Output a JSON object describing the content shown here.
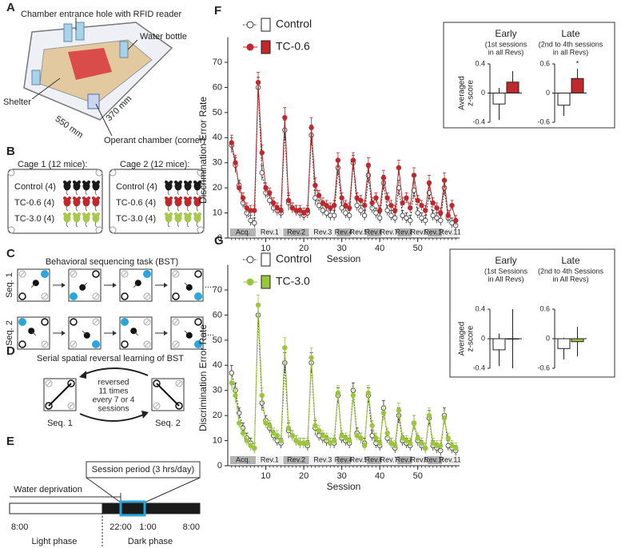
{
  "panels": {
    "letters": [
      "A",
      "B",
      "C",
      "D",
      "E",
      "F",
      "G"
    ],
    "A": {
      "rfid": "Chamber entrance hole with RFID reader",
      "water": "Water bottle",
      "shelter": "Shelter",
      "dim1": "550 mm",
      "dim2": "370 mm",
      "operant": "Operant chamber (corner)"
    },
    "B": {
      "cage1": "Cage 1 (12 mice):",
      "cage2": "Cage 2 (12 mice):",
      "groups": [
        "Control (4)",
        "TC-0.6 (4)",
        "TC-3.0 (4)"
      ],
      "colors": [
        "#1a1a1a",
        "#c0282d",
        "#a9c84e"
      ]
    },
    "C": {
      "title": "Behavioral sequencing task (BST)",
      "seq1": "Seq. 1",
      "seq2": "Seq. 2",
      "more": "...."
    },
    "D": {
      "title": "Serial spatial reversal learning of BST",
      "note": [
        "reversed",
        "11 times",
        "every 7 or 4",
        "sessions"
      ],
      "seq1": "Seq. 1",
      "seq2": "Seq. 2"
    },
    "E": {
      "session": "Session period (3 hrs/day)",
      "water": "Water deprivation",
      "times": [
        "8:00",
        "22:00",
        "1:00",
        "8:00"
      ],
      "light": "Light phase",
      "dark": "Dark phase"
    }
  },
  "chart_data": [
    {
      "type": "line",
      "xlabel": "Session",
      "ylabel": "Discrimination Error Rate",
      "x": [
        1,
        2,
        3,
        4,
        5,
        6,
        7,
        8,
        9,
        10,
        11,
        12,
        13,
        14,
        15,
        16,
        17,
        18,
        19,
        20,
        21,
        22,
        23,
        24,
        25,
        26,
        27,
        28,
        29,
        30,
        31,
        32,
        33,
        34,
        35,
        36,
        37,
        38,
        39,
        40,
        41,
        42,
        43,
        44,
        45,
        46,
        47,
        48,
        49,
        50,
        51,
        52,
        53,
        54,
        55,
        56,
        57,
        58,
        59,
        60
      ],
      "xlim": [
        0,
        61
      ],
      "xticks": [
        10,
        20,
        30,
        40,
        50
      ],
      "ylim": [
        0,
        80
      ],
      "yticks": [
        0,
        10,
        20,
        30,
        40,
        50,
        60,
        70
      ],
      "blocks": [
        {
          "label": "Acq.",
          "start": 0.5,
          "end": 7.5
        },
        {
          "label": "Rev.1",
          "start": 7.5,
          "end": 14.5
        },
        {
          "label": "Rev.2",
          "start": 14.5,
          "end": 21.5
        },
        {
          "label": "Rev.3",
          "start": 21.5,
          "end": 28.5
        },
        {
          "label": "Rev.4",
          "start": 28.5,
          "end": 32.5
        },
        {
          "label": "Rev.5",
          "start": 32.5,
          "end": 36.5
        },
        {
          "label": "Rev.6",
          "start": 36.5,
          "end": 40.5
        },
        {
          "label": "Rev.7",
          "start": 40.5,
          "end": 44.5
        },
        {
          "label": "Rev.8",
          "start": 44.5,
          "end": 48.5
        },
        {
          "label": "Rev.9",
          "start": 48.5,
          "end": 52.5
        },
        {
          "label": "Rev.10",
          "start": 52.5,
          "end": 56.5
        },
        {
          "label": "Rev.11",
          "start": 56.5,
          "end": 60.5
        }
      ],
      "series": [
        {
          "name": "Control",
          "color": "#333333",
          "fill": "#ffffff",
          "line_style": "dotted",
          "values": [
            37,
            29,
            21,
            14,
            10,
            7,
            6,
            60,
            26,
            18,
            15,
            12,
            11,
            10,
            43,
            14,
            12,
            11,
            10,
            9,
            10,
            41,
            16,
            13,
            11,
            10,
            9,
            9,
            28,
            12,
            10,
            9,
            30,
            13,
            11,
            9,
            25,
            12,
            10,
            8,
            22,
            11,
            9,
            8,
            20,
            9,
            8,
            7,
            19,
            10,
            8,
            7,
            18,
            9,
            8,
            7,
            20,
            8,
            6,
            5
          ],
          "errors": [
            3,
            3,
            2,
            2,
            2,
            2,
            2,
            4,
            3,
            2,
            2,
            2,
            2,
            2,
            4,
            3,
            2,
            2,
            2,
            2,
            2,
            4,
            3,
            2,
            2,
            2,
            2,
            2,
            3,
            2,
            2,
            2,
            3,
            2,
            2,
            2,
            3,
            2,
            2,
            2,
            3,
            2,
            2,
            2,
            3,
            2,
            2,
            2,
            3,
            2,
            2,
            2,
            3,
            2,
            2,
            2,
            3,
            2,
            2,
            2
          ]
        },
        {
          "name": "TC-0.6",
          "color": "#c0282d",
          "fill": "#c0282d",
          "line_style": "solid",
          "values": [
            38,
            30,
            20,
            16,
            12,
            11,
            11,
            62,
            34,
            20,
            18,
            14,
            12,
            11,
            48,
            15,
            12,
            11,
            11,
            10,
            11,
            44,
            21,
            17,
            14,
            13,
            12,
            13,
            31,
            16,
            13,
            12,
            31,
            16,
            15,
            13,
            29,
            14,
            16,
            11,
            24,
            16,
            13,
            11,
            28,
            14,
            16,
            12,
            25,
            15,
            13,
            11,
            22,
            14,
            12,
            10,
            23,
            9,
            13,
            7
          ],
          "errors": [
            3,
            3,
            2,
            2,
            2,
            2,
            2,
            4,
            3,
            2,
            2,
            2,
            2,
            2,
            4,
            3,
            2,
            2,
            2,
            2,
            2,
            4,
            3,
            2,
            2,
            2,
            2,
            2,
            3,
            2,
            2,
            2,
            3,
            2,
            2,
            2,
            3,
            2,
            2,
            2,
            3,
            2,
            2,
            2,
            3,
            2,
            2,
            2,
            3,
            2,
            2,
            2,
            3,
            2,
            2,
            2,
            3,
            2,
            2,
            2
          ]
        }
      ]
    },
    {
      "type": "bar",
      "title": "Early",
      "subtitle": [
        "(1st sessions",
        "in all Revs)"
      ],
      "ylabel": [
        "Averaged",
        "z-score"
      ],
      "values": [
        -0.15,
        0.15
      ],
      "errors": [
        0.22,
        0.15
      ],
      "colors": [
        "#ffffff",
        "#c0282d"
      ],
      "ylim": [
        -0.4,
        0.4
      ],
      "yticks": [
        -0.4,
        0,
        0.4
      ]
    },
    {
      "type": "bar",
      "title": "Late",
      "subtitle": [
        "(2nd to 4th sessions",
        "in all Revs)"
      ],
      "annotation": "*",
      "values": [
        -0.25,
        0.3
      ],
      "errors": [
        0.22,
        0.2
      ],
      "colors": [
        "#ffffff",
        "#c0282d"
      ],
      "ylim": [
        -0.6,
        0.6
      ],
      "yticks": [
        -0.6,
        0,
        0.6
      ]
    },
    {
      "type": "line",
      "xlabel": "Session",
      "ylabel": "Discrimination Error Rate",
      "x": [
        1,
        2,
        3,
        4,
        5,
        6,
        7,
        8,
        9,
        10,
        11,
        12,
        13,
        14,
        15,
        16,
        17,
        18,
        19,
        20,
        21,
        22,
        23,
        24,
        25,
        26,
        27,
        28,
        29,
        30,
        31,
        32,
        33,
        34,
        35,
        36,
        37,
        38,
        39,
        40,
        41,
        42,
        43,
        44,
        45,
        46,
        47,
        48,
        49,
        50,
        51,
        52,
        53,
        54,
        55,
        56,
        57,
        58,
        59,
        60
      ],
      "xlim": [
        0,
        61
      ],
      "xticks": [
        10,
        20,
        30,
        40,
        50
      ],
      "ylim": [
        0,
        80
      ],
      "yticks": [
        0,
        10,
        20,
        30,
        40,
        50,
        60,
        70
      ],
      "blocks": [
        {
          "label": "Acq.",
          "start": 0.5,
          "end": 7.5
        },
        {
          "label": "Rev.1",
          "start": 7.5,
          "end": 14.5
        },
        {
          "label": "Rev.2",
          "start": 14.5,
          "end": 21.5
        },
        {
          "label": "Rev.3",
          "start": 21.5,
          "end": 28.5
        },
        {
          "label": "Rev.4",
          "start": 28.5,
          "end": 32.5
        },
        {
          "label": "Rev.5",
          "start": 32.5,
          "end": 36.5
        },
        {
          "label": "Rev.6",
          "start": 36.5,
          "end": 40.5
        },
        {
          "label": "Rev.7",
          "start": 40.5,
          "end": 44.5
        },
        {
          "label": "Rev.8",
          "start": 44.5,
          "end": 48.5
        },
        {
          "label": "Rev.9",
          "start": 48.5,
          "end": 52.5
        },
        {
          "label": "Rev.10",
          "start": 52.5,
          "end": 56.5
        },
        {
          "label": "Rev.11",
          "start": 56.5,
          "end": 60.5
        }
      ],
      "series": [
        {
          "name": "Control",
          "color": "#333333",
          "fill": "#ffffff",
          "line_style": "dotted",
          "values": [
            37,
            30,
            21,
            15,
            11,
            9,
            7,
            60,
            25,
            18,
            15,
            12,
            10,
            9,
            41,
            14,
            12,
            10,
            9,
            9,
            8,
            41,
            15,
            12,
            11,
            10,
            9,
            9,
            28,
            11,
            10,
            9,
            30,
            13,
            11,
            9,
            28,
            12,
            9,
            8,
            23,
            11,
            9,
            7,
            20,
            10,
            9,
            8,
            17,
            10,
            8,
            7,
            19,
            8,
            7,
            6,
            20,
            8,
            7,
            6
          ],
          "errors": [
            3,
            3,
            2,
            2,
            2,
            2,
            2,
            4,
            3,
            2,
            2,
            2,
            2,
            2,
            4,
            3,
            2,
            2,
            2,
            2,
            2,
            4,
            3,
            2,
            2,
            2,
            2,
            2,
            3,
            2,
            2,
            2,
            3,
            2,
            2,
            2,
            3,
            2,
            2,
            2,
            3,
            2,
            2,
            2,
            3,
            2,
            2,
            2,
            3,
            2,
            2,
            2,
            3,
            2,
            2,
            2,
            3,
            2,
            2,
            2
          ]
        },
        {
          "name": "TC-3.0",
          "color": "#9bc53d",
          "fill": "#9bc53d",
          "line_style": "solid",
          "values": [
            33,
            28,
            17,
            13,
            10,
            8,
            7,
            64,
            28,
            17,
            16,
            13,
            12,
            10,
            47,
            15,
            12,
            10,
            9,
            9,
            9,
            43,
            16,
            14,
            12,
            11,
            9,
            10,
            29,
            12,
            11,
            10,
            28,
            12,
            11,
            8,
            29,
            16,
            11,
            9,
            21,
            13,
            9,
            8,
            22,
            11,
            10,
            9,
            17,
            11,
            9,
            7,
            20,
            9,
            8,
            8,
            19,
            11,
            8,
            7
          ],
          "errors": [
            3,
            3,
            2,
            2,
            2,
            2,
            2,
            4,
            3,
            2,
            2,
            2,
            2,
            2,
            4,
            3,
            2,
            2,
            2,
            2,
            2,
            4,
            3,
            2,
            2,
            2,
            2,
            2,
            3,
            2,
            2,
            2,
            3,
            2,
            2,
            2,
            3,
            2,
            2,
            2,
            3,
            2,
            2,
            2,
            3,
            2,
            2,
            2,
            3,
            2,
            2,
            2,
            3,
            2,
            2,
            2,
            3,
            2,
            2,
            2
          ]
        }
      ]
    },
    {
      "type": "bar",
      "title": "Early",
      "subtitle": [
        "(1st Sessions",
        "in All Revs)"
      ],
      "ylabel": [
        "Averaged",
        "z-score"
      ],
      "values": [
        -0.15,
        0.0
      ],
      "errors": [
        0.22,
        0.4
      ],
      "colors": [
        "#ffffff",
        "#9bc53d"
      ],
      "ylim": [
        -0.4,
        0.4
      ],
      "yticks": [
        -0.4,
        0,
        0.4
      ]
    },
    {
      "type": "bar",
      "title": "Late",
      "subtitle": [
        "(2nd to 4th Sessions",
        "in All Revs)"
      ],
      "values": [
        -0.2,
        -0.06
      ],
      "errors": [
        0.22,
        0.3
      ],
      "colors": [
        "#ffffff",
        "#9bc53d"
      ],
      "ylim": [
        -0.6,
        0.6
      ],
      "yticks": [
        -0.6,
        0,
        0.6
      ]
    }
  ]
}
